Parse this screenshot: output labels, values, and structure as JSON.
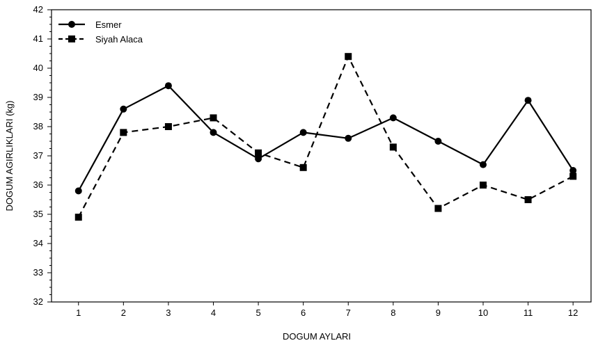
{
  "chart_data": {
    "type": "line",
    "title": "",
    "xlabel": "DOGUM AYLARI",
    "ylabel": "DOGUM AGIRLIKLARI (kg)",
    "x": [
      1,
      2,
      3,
      4,
      5,
      6,
      7,
      8,
      9,
      10,
      11,
      12
    ],
    "xticks": [
      "1",
      "2",
      "3",
      "4",
      "5",
      "6",
      "7",
      "8",
      "9",
      "10",
      "11",
      "12"
    ],
    "xlim": [
      0.4,
      12.4
    ],
    "ylim": [
      32,
      42
    ],
    "yticks": [
      "32",
      "33",
      "34",
      "35",
      "36",
      "37",
      "38",
      "39",
      "40",
      "41",
      "42"
    ],
    "grid": false,
    "legend_position": "top-left",
    "series": [
      {
        "name": "Esmer",
        "marker": "circle",
        "line_style": "solid",
        "color": "#000000",
        "values": [
          35.8,
          38.6,
          39.4,
          37.8,
          36.9,
          37.8,
          37.6,
          38.3,
          37.5,
          36.7,
          38.9,
          36.5
        ]
      },
      {
        "name": "Siyah Alaca",
        "marker": "square",
        "line_style": "dashed",
        "color": "#000000",
        "values": [
          34.9,
          37.8,
          38.0,
          38.3,
          37.1,
          36.6,
          40.4,
          37.3,
          35.2,
          36.0,
          35.5,
          36.3
        ]
      }
    ]
  }
}
